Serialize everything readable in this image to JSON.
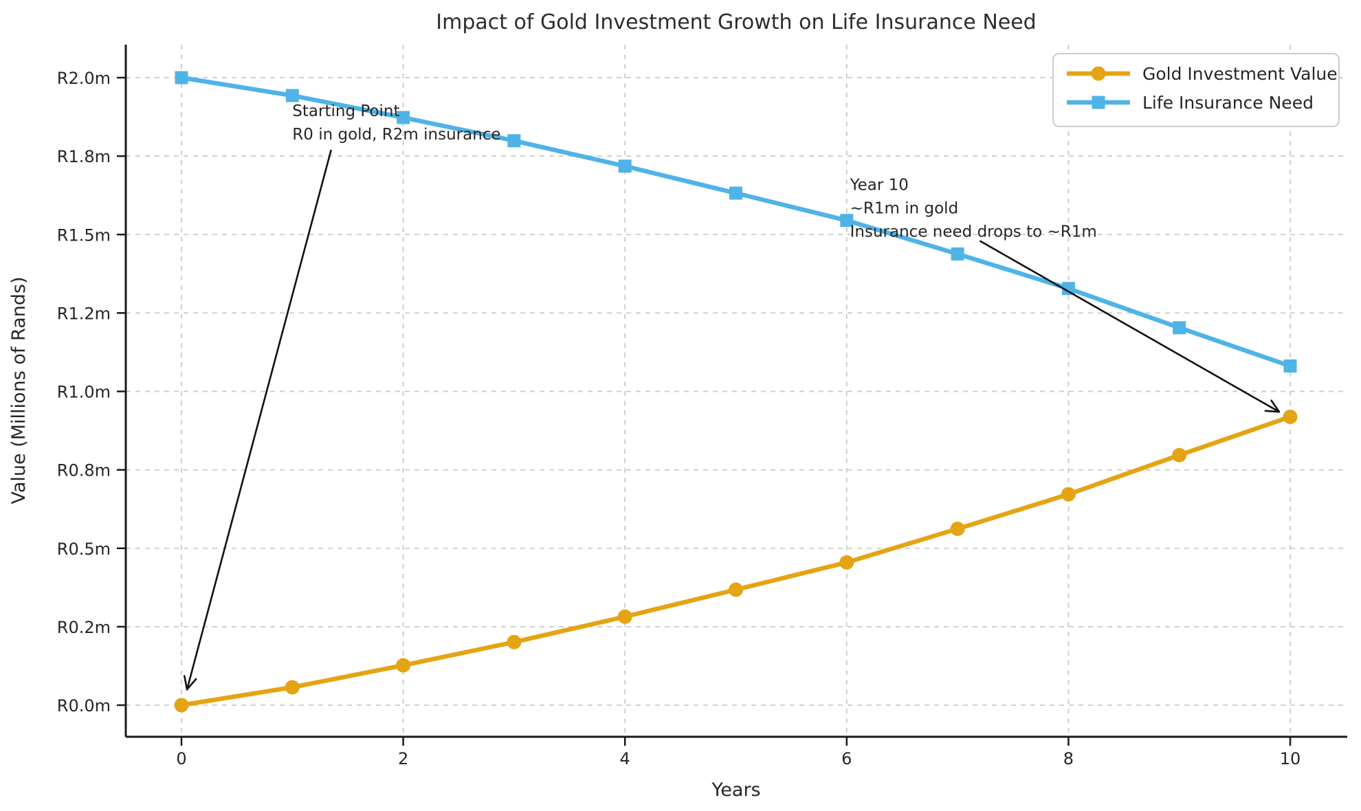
{
  "figure": {
    "background": "#ffffff",
    "text_color": "#262626",
    "grid_color": "#c9c9c9",
    "spine_color": "#1a1a1a"
  },
  "chart_data": {
    "type": "line",
    "title": "Impact of Gold Investment Growth on Life Insurance Need",
    "xlabel": "Years",
    "ylabel": "Value (Millions of Rands)",
    "x": [
      0,
      1,
      2,
      3,
      4,
      5,
      6,
      7,
      8,
      9,
      10
    ],
    "xlim": [
      -0.5,
      10.5
    ],
    "ylim": [
      -0.1,
      2.1
    ],
    "grid": "dashed both axes",
    "legend_position": "upper right",
    "series": [
      {
        "name": "Gold Investment Value",
        "color": "#E4A413",
        "marker": "circle",
        "values": [
          0.0,
          0.057,
          0.127,
          0.201,
          0.282,
          0.368,
          0.455,
          0.562,
          0.672,
          0.797,
          0.919
        ]
      },
      {
        "name": "Life Insurance Need",
        "color": "#4FB3E8",
        "marker": "square",
        "values": [
          2.0,
          1.943,
          1.873,
          1.799,
          1.718,
          1.632,
          1.545,
          1.438,
          1.328,
          1.203,
          1.081
        ]
      }
    ],
    "xticks": {
      "values": [
        0,
        2,
        4,
        6,
        8,
        10
      ],
      "labels": [
        "0",
        "2",
        "4",
        "6",
        "8",
        "10"
      ]
    },
    "yticks": {
      "values": [
        0,
        0.25,
        0.5,
        0.75,
        1.0,
        1.25,
        1.5,
        1.75,
        2.0
      ],
      "labels": [
        "R0.0m",
        "R0.2m",
        "R0.5m",
        "R0.8m",
        "R1.0m",
        "R1.2m",
        "R1.5m",
        "R1.8m",
        "R2.0m"
      ]
    },
    "annotations": [
      {
        "lines": [
          "Starting Point",
          "R0 in gold, R2m insurance"
        ],
        "text_xy": [
          1.0,
          1.925
        ],
        "arrow_from": [
          1.35,
          1.77
        ],
        "arrow_to": [
          0.05,
          0.05
        ]
      },
      {
        "lines": [
          "Year 10",
          "~R1m in gold",
          "Insurance need drops to ~R1m"
        ],
        "text_xy": [
          6.03,
          1.69
        ],
        "arrow_from": [
          7.2,
          1.48
        ],
        "arrow_to": [
          9.9,
          0.935
        ]
      }
    ]
  }
}
